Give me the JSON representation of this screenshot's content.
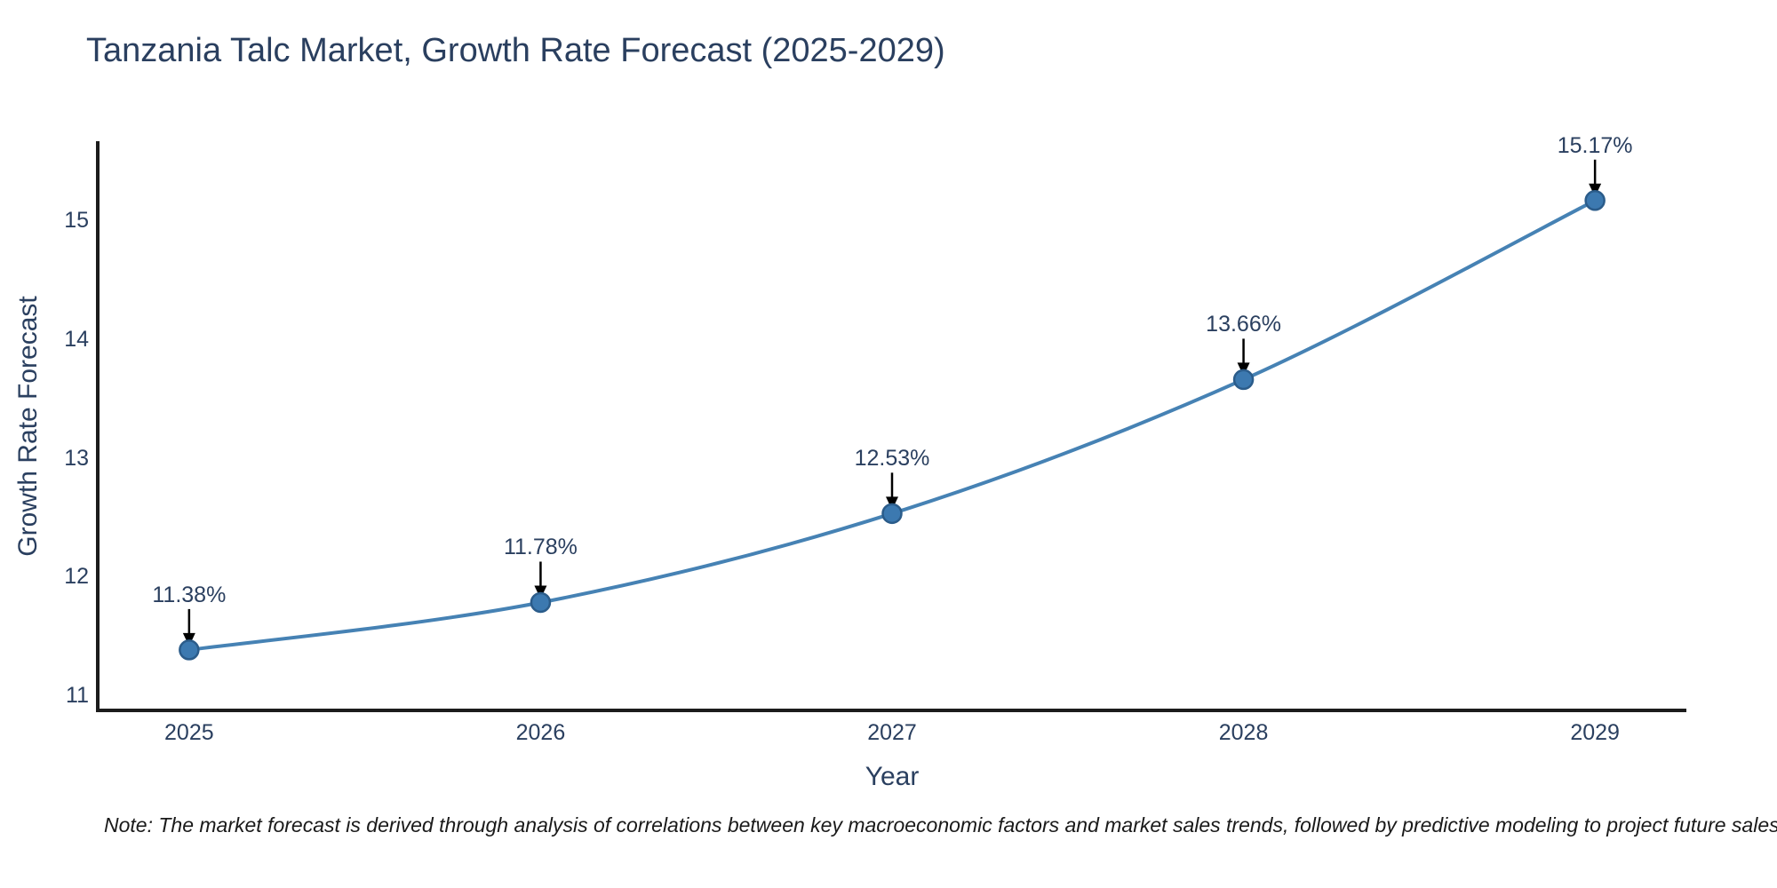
{
  "title": "Tanzania Talc Market, Growth Rate Forecast (2025-2029)",
  "note": "Note: The market forecast is derived through analysis of correlations between key macroeconomic factors and market sales trends, followed by predictive modeling to project future sales",
  "chart_data": {
    "type": "line",
    "title": "Tanzania Talc Market, Growth Rate Forecast (2025-2029)",
    "xlabel": "Year",
    "ylabel": "Growth Rate Forecast",
    "x": [
      2025,
      2026,
      2027,
      2028,
      2029
    ],
    "values": [
      11.38,
      11.78,
      12.53,
      13.66,
      15.17
    ],
    "point_labels": [
      "11.38%",
      "11.78%",
      "12.53%",
      "13.66%",
      "15.17%"
    ],
    "xticks": [
      "2025",
      "2026",
      "2027",
      "2028",
      "2029"
    ],
    "yticks": [
      11,
      12,
      13,
      14,
      15
    ],
    "xlim": [
      2024.74,
      2029.26
    ],
    "ylim": [
      10.87,
      15.67
    ],
    "grid": false,
    "legend": "none",
    "line_shape": "spline",
    "colors": {
      "line": "#4682b4",
      "marker_fill": "#3c79b0",
      "marker_border": "#2b5c8a",
      "axis_line": "#1c1c1c",
      "text": "#2a3f5f",
      "annotation_arrow": "#000000"
    }
  }
}
